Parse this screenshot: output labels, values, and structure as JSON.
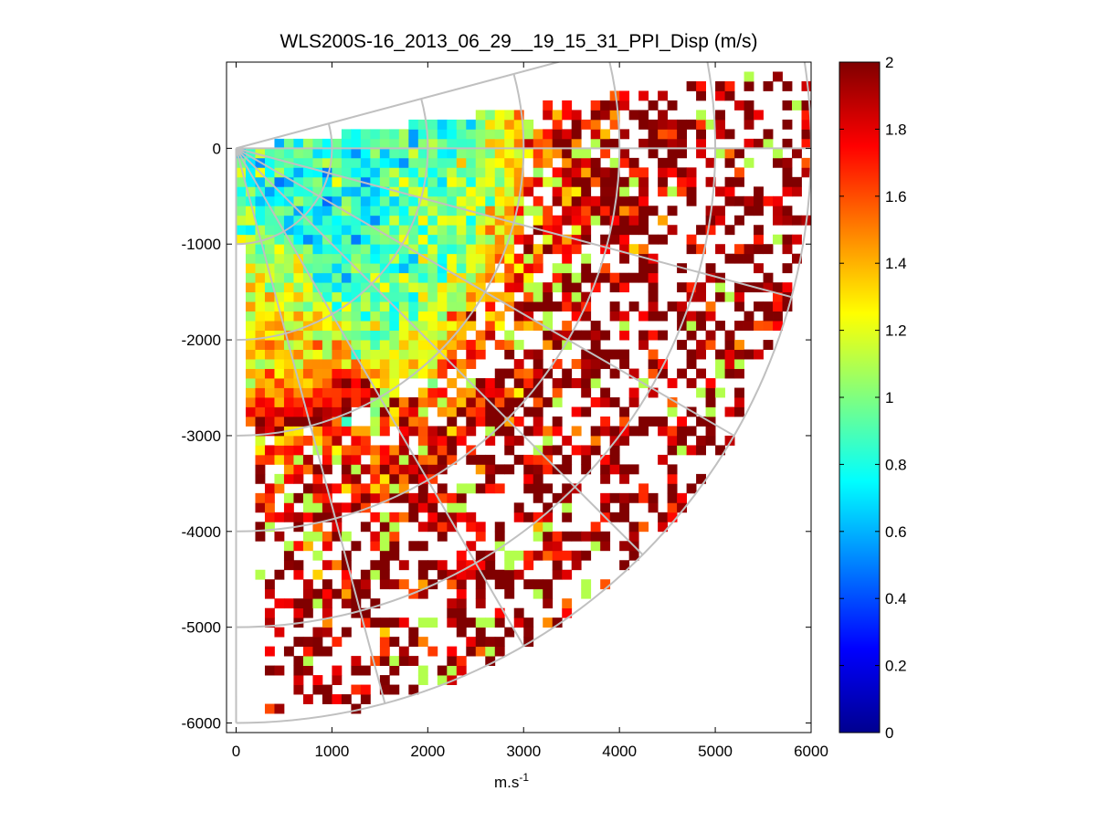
{
  "chart_data": {
    "type": "heatmap",
    "title": "WLS200S-16_2013_06_29__19_15_31_PPI_Disp (m/s)",
    "xlabel": "m.s",
    "xlabel_superscript": "-1",
    "ylabel": "",
    "xlim": [
      -100,
      6000
    ],
    "ylim": [
      -6100,
      900
    ],
    "xticks": [
      0,
      1000,
      2000,
      3000,
      4000,
      5000,
      6000
    ],
    "yticks": [
      0,
      -1000,
      -2000,
      -3000,
      -4000,
      -5000,
      -6000
    ],
    "xtick_labels": [
      "0",
      "1000",
      "2000",
      "3000",
      "4000",
      "5000",
      "6000"
    ],
    "ytick_labels": [
      "0",
      "-1000",
      "-2000",
      "-3000",
      "-4000",
      "-5000",
      "-6000"
    ],
    "colorbar": {
      "colormap": "jet",
      "range": [
        0,
        2
      ],
      "ticks": [
        0,
        0.2,
        0.4,
        0.6,
        0.8,
        1,
        1.2,
        1.4,
        1.6,
        1.8,
        2
      ],
      "tick_labels": [
        "0",
        "0.2",
        "0.4",
        "0.6",
        "0.8",
        "1",
        "1.2",
        "1.4",
        "1.6",
        "1.8",
        "2"
      ]
    },
    "scan": {
      "description": "PPI sector scan of wind dispersion (m/s), range gates vs azimuth",
      "azimuth_start_deg": 0,
      "azimuth_end_deg": -90,
      "azimuth_extent_above_deg": 15,
      "max_range_m": 6000,
      "polar_grid_ranges_m": [
        1000,
        2000,
        3000,
        4000,
        5000,
        6000
      ],
      "polar_grid_angles_deg": [
        15,
        0,
        -15,
        -30,
        -45,
        -60,
        -75,
        -90
      ],
      "data_sector_start_deg": 8,
      "data_sector_end_deg": -87,
      "gate_spacing_m": 100,
      "typical_value_by_range": [
        {
          "range_m": 500,
          "value": 0.8
        },
        {
          "range_m": 1500,
          "value": 0.85
        },
        {
          "range_m": 2500,
          "value": 1.0
        },
        {
          "range_m": 3500,
          "value": 1.8
        },
        {
          "range_m": 4500,
          "value": 2.0
        },
        {
          "range_m": 5500,
          "value": 2.0
        }
      ]
    }
  }
}
